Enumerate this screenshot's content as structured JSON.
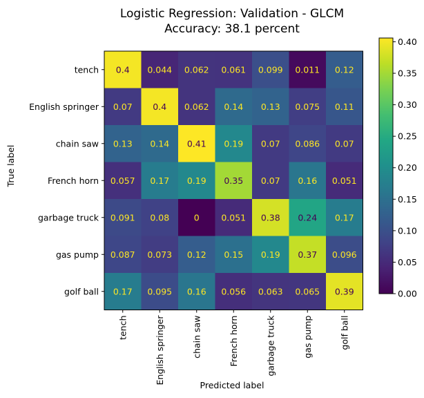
{
  "chart_data": {
    "type": "heatmap",
    "title": "Logistic Regression: Validation - GLCM",
    "subtitle": "Accuracy: 38.1 percent",
    "xlabel": "Predicted label",
    "ylabel": "True label",
    "x_categories": [
      "tench",
      "English springer",
      "chain saw",
      "French horn",
      "garbage truck",
      "gas pump",
      "golf ball"
    ],
    "y_categories": [
      "tench",
      "English springer",
      "chain saw",
      "French horn",
      "garbage truck",
      "gas pump",
      "golf ball"
    ],
    "values": [
      [
        0.4,
        0.044,
        0.062,
        0.061,
        0.099,
        0.011,
        0.12
      ],
      [
        0.07,
        0.4,
        0.062,
        0.14,
        0.13,
        0.075,
        0.11
      ],
      [
        0.13,
        0.14,
        0.41,
        0.19,
        0.07,
        0.086,
        0.07
      ],
      [
        0.057,
        0.17,
        0.19,
        0.35,
        0.07,
        0.16,
        0.051
      ],
      [
        0.091,
        0.08,
        0,
        0.051,
        0.38,
        0.24,
        0.17
      ],
      [
        0.087,
        0.073,
        0.12,
        0.15,
        0.19,
        0.37,
        0.096
      ],
      [
        0.17,
        0.095,
        0.16,
        0.056,
        0.063,
        0.065,
        0.39
      ]
    ],
    "value_labels": [
      [
        "0.4",
        "0.044",
        "0.062",
        "0.061",
        "0.099",
        "0.011",
        "0.12"
      ],
      [
        "0.07",
        "0.4",
        "0.062",
        "0.14",
        "0.13",
        "0.075",
        "0.11"
      ],
      [
        "0.13",
        "0.14",
        "0.41",
        "0.19",
        "0.07",
        "0.086",
        "0.07"
      ],
      [
        "0.057",
        "0.17",
        "0.19",
        "0.35",
        "0.07",
        "0.16",
        "0.051"
      ],
      [
        "0.091",
        "0.08",
        "0",
        "0.051",
        "0.38",
        "0.24",
        "0.17"
      ],
      [
        "0.087",
        "0.073",
        "0.12",
        "0.15",
        "0.19",
        "0.37",
        "0.096"
      ],
      [
        "0.17",
        "0.095",
        "0.16",
        "0.056",
        "0.063",
        "0.065",
        "0.39"
      ]
    ],
    "colormap": "viridis",
    "color_range": [
      0,
      0.406
    ],
    "colorbar_ticks": [
      "0.00",
      "0.05",
      "0.10",
      "0.15",
      "0.20",
      "0.25",
      "0.30",
      "0.35",
      "0.40"
    ],
    "colorbar_tick_values": [
      0,
      0.05,
      0.1,
      0.15,
      0.2,
      0.25,
      0.3,
      0.35,
      0.4
    ],
    "text_color_light": "#fde725",
    "text_color_dark": "#440154",
    "grid": false
  }
}
